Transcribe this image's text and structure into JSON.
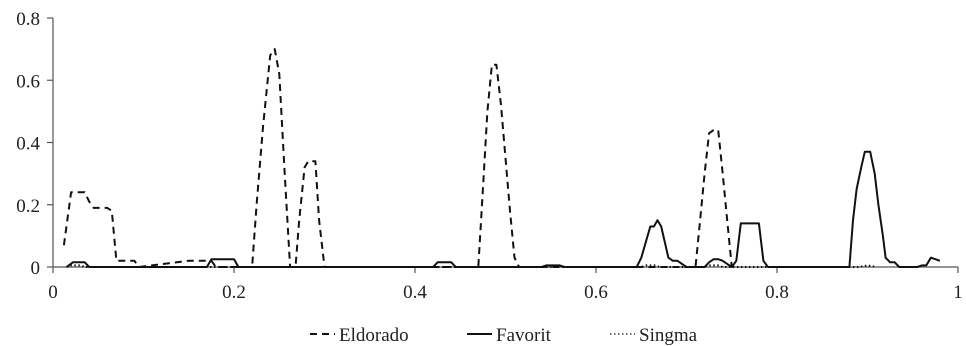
{
  "chart_data": {
    "type": "line",
    "title": "",
    "xlabel": "",
    "ylabel": "",
    "xlim": [
      0,
      1
    ],
    "ylim": [
      0,
      0.8
    ],
    "xticks": [
      0,
      0.2,
      0.4,
      0.6,
      0.8,
      1
    ],
    "yticks": [
      0,
      0.2,
      0.4,
      0.6,
      0.8
    ],
    "xtick_labels": [
      "0",
      "0.2",
      "0.4",
      "0.6",
      "0.8",
      "1"
    ],
    "ytick_labels": [
      "0",
      "0.2",
      "0.4",
      "0.6",
      "0.8"
    ],
    "grid": false,
    "legend_position": "bottom",
    "series": [
      {
        "name": "Eldorado",
        "line_style": "dashed",
        "color": "#111111",
        "x": [
          0.012,
          0.02,
          0.035,
          0.04,
          0.045,
          0.05,
          0.06,
          0.065,
          0.07,
          0.075,
          0.09,
          0.095,
          0.15,
          0.175,
          0.18,
          0.22,
          0.225,
          0.232,
          0.24,
          0.245,
          0.25,
          0.256,
          0.262,
          0.268,
          0.272,
          0.278,
          0.282,
          0.29,
          0.294,
          0.3,
          0.305,
          0.47,
          0.475,
          0.48,
          0.485,
          0.49,
          0.495,
          0.5,
          0.505,
          0.51,
          0.515,
          0.71,
          0.715,
          0.72,
          0.725,
          0.73,
          0.735,
          0.74,
          0.745,
          0.75
        ],
        "y": [
          0.07,
          0.24,
          0.24,
          0.21,
          0.19,
          0.19,
          0.19,
          0.18,
          0.02,
          0.02,
          0.02,
          0.0,
          0.02,
          0.02,
          0.0,
          0.0,
          0.2,
          0.45,
          0.68,
          0.7,
          0.62,
          0.3,
          0.0,
          0.0,
          0.15,
          0.32,
          0.34,
          0.34,
          0.15,
          0.0,
          0.0,
          0.0,
          0.25,
          0.5,
          0.65,
          0.65,
          0.52,
          0.35,
          0.18,
          0.03,
          0.0,
          0.0,
          0.15,
          0.3,
          0.43,
          0.44,
          0.44,
          0.3,
          0.15,
          0.0
        ]
      },
      {
        "name": "Favorit",
        "line_style": "solid",
        "color": "#111111",
        "x": [
          0.015,
          0.022,
          0.035,
          0.04,
          0.17,
          0.175,
          0.2,
          0.205,
          0.42,
          0.425,
          0.44,
          0.445,
          0.54,
          0.545,
          0.56,
          0.565,
          0.645,
          0.65,
          0.66,
          0.664,
          0.668,
          0.672,
          0.676,
          0.68,
          0.685,
          0.69,
          0.7,
          0.72,
          0.725,
          0.73,
          0.735,
          0.74,
          0.745,
          0.75,
          0.755,
          0.76,
          0.77,
          0.78,
          0.785,
          0.79,
          0.88,
          0.884,
          0.888,
          0.893,
          0.897,
          0.903,
          0.908,
          0.912,
          0.917,
          0.92,
          0.925,
          0.93,
          0.935,
          0.94,
          0.945,
          0.955,
          0.96,
          0.965,
          0.97,
          0.975,
          0.98
        ],
        "y": [
          0.0,
          0.015,
          0.015,
          0.0,
          0.0,
          0.025,
          0.025,
          0.0,
          0.0,
          0.015,
          0.015,
          0.0,
          0.0,
          0.005,
          0.005,
          0.0,
          0.0,
          0.03,
          0.13,
          0.13,
          0.15,
          0.13,
          0.08,
          0.03,
          0.02,
          0.02,
          0.0,
          0.0,
          0.015,
          0.025,
          0.025,
          0.02,
          0.01,
          0.0,
          0.02,
          0.14,
          0.14,
          0.14,
          0.02,
          0.0,
          0.0,
          0.15,
          0.25,
          0.32,
          0.37,
          0.37,
          0.3,
          0.2,
          0.1,
          0.03,
          0.015,
          0.015,
          0.0,
          0.0,
          0.0,
          0.0,
          0.005,
          0.005,
          0.03,
          0.025,
          0.02
        ]
      },
      {
        "name": "Singma",
        "line_style": "dotted",
        "color": "#111111",
        "x": [
          0.015,
          0.02,
          0.03,
          0.035,
          0.65,
          0.655,
          0.665,
          0.67,
          0.72,
          0.725,
          0.735,
          0.74,
          0.89,
          0.9,
          0.91
        ],
        "y": [
          0.0,
          0.005,
          0.005,
          0.0,
          0.0,
          0.005,
          0.005,
          0.0,
          0.0,
          0.005,
          0.005,
          0.0,
          0.0,
          0.005,
          0.0
        ]
      }
    ]
  }
}
